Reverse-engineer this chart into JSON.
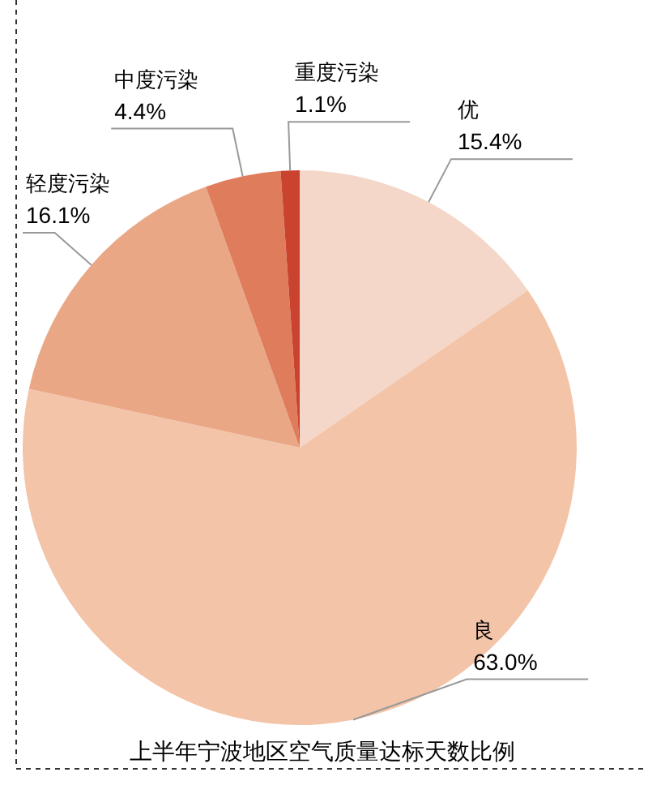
{
  "chart_data": {
    "type": "pie",
    "title": "上半年宁波地区空气质量达标天数比例",
    "categories": [
      "优",
      "良",
      "轻度污染",
      "中度污染",
      "重度污染"
    ],
    "values": [
      15.4,
      63.0,
      16.1,
      4.4,
      1.1
    ],
    "colors": [
      "#f4d7c8",
      "#f3c4a8",
      "#eaa786",
      "#de7c5c",
      "#c9432f"
    ],
    "value_labels": [
      "15.4%",
      "63.0%",
      "16.1%",
      "4.4%",
      "1.1%"
    ]
  }
}
